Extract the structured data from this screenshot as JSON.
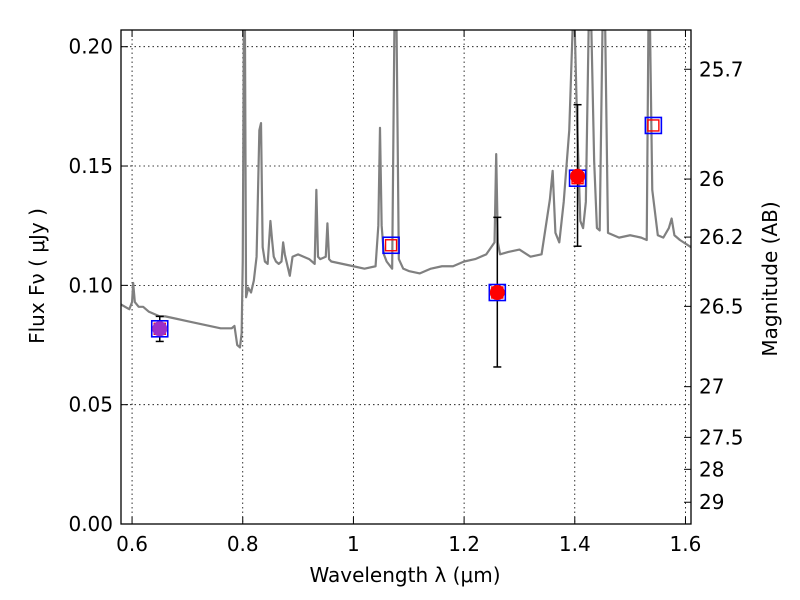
{
  "chart_data": {
    "type": "line",
    "xlabel": "Wavelength  λ (μm)",
    "ylabel": "Flux  Fν  ( μJy )",
    "y2label": "Magnitude (AB)",
    "xlim": [
      0.58,
      1.61
    ],
    "ylim": [
      0.0,
      0.207
    ],
    "grid": true,
    "x_ticks": [
      {
        "value": 0.6,
        "label": "0.6"
      },
      {
        "value": 0.8,
        "label": "0.8"
      },
      {
        "value": 1.0,
        "label": "1"
      },
      {
        "value": 1.2,
        "label": "1.2"
      },
      {
        "value": 1.4,
        "label": "1.4"
      },
      {
        "value": 1.6,
        "label": "1.6"
      }
    ],
    "y_ticks": [
      {
        "value": 0.0,
        "label": "0.00"
      },
      {
        "value": 0.05,
        "label": "0.05"
      },
      {
        "value": 0.1,
        "label": "0.10"
      },
      {
        "value": 0.15,
        "label": "0.15"
      },
      {
        "value": 0.2,
        "label": "0.20"
      }
    ],
    "y2_ticks": [
      {
        "value": 25.7,
        "label": "25.7"
      },
      {
        "value": 26.0,
        "label": "26"
      },
      {
        "value": 26.2,
        "label": "26.2"
      },
      {
        "value": 26.5,
        "label": "26.5"
      },
      {
        "value": 27.0,
        "label": "27"
      },
      {
        "value": 27.5,
        "label": "27.5"
      },
      {
        "value": 28.0,
        "label": "28"
      },
      {
        "value": 29.0,
        "label": "29"
      }
    ],
    "series": [
      {
        "type": "line",
        "color": "#808080",
        "x": [
          0.58,
          0.595,
          0.6,
          0.602,
          0.605,
          0.612,
          0.62,
          0.63,
          0.65,
          0.66,
          0.68,
          0.7,
          0.72,
          0.74,
          0.76,
          0.78,
          0.785,
          0.79,
          0.795,
          0.798,
          0.8,
          0.802,
          0.804,
          0.806,
          0.81,
          0.815,
          0.82,
          0.825,
          0.83,
          0.833,
          0.836,
          0.84,
          0.845,
          0.85,
          0.853,
          0.856,
          0.86,
          0.865,
          0.87,
          0.873,
          0.876,
          0.88,
          0.885,
          0.89,
          0.9,
          0.91,
          0.92,
          0.93,
          0.933,
          0.936,
          0.94,
          0.95,
          0.953,
          0.956,
          0.96,
          0.98,
          1.0,
          1.02,
          1.04,
          1.045,
          1.048,
          1.051,
          1.055,
          1.06,
          1.07,
          1.074,
          1.076,
          1.078,
          1.082,
          1.09,
          1.1,
          1.12,
          1.14,
          1.16,
          1.18,
          1.2,
          1.22,
          1.24,
          1.255,
          1.258,
          1.261,
          1.265,
          1.28,
          1.3,
          1.32,
          1.34,
          1.355,
          1.36,
          1.365,
          1.372,
          1.38,
          1.39,
          1.396,
          1.4,
          1.404,
          1.41,
          1.415,
          1.42,
          1.425,
          1.43,
          1.435,
          1.44,
          1.445,
          1.45,
          1.455,
          1.46,
          1.47,
          1.48,
          1.5,
          1.52,
          1.53,
          1.533,
          1.536,
          1.54,
          1.55,
          1.56,
          1.57,
          1.575,
          1.58,
          1.59,
          1.61
        ],
        "y": [
          0.092,
          0.09,
          0.093,
          0.101,
          0.093,
          0.091,
          0.091,
          0.089,
          0.087,
          0.087,
          0.086,
          0.085,
          0.084,
          0.083,
          0.082,
          0.082,
          0.083,
          0.075,
          0.074,
          0.08,
          0.11,
          0.207,
          0.207,
          0.095,
          0.099,
          0.097,
          0.102,
          0.112,
          0.165,
          0.168,
          0.116,
          0.11,
          0.109,
          0.127,
          0.119,
          0.112,
          0.11,
          0.109,
          0.11,
          0.118,
          0.113,
          0.109,
          0.104,
          0.112,
          0.113,
          0.112,
          0.111,
          0.109,
          0.14,
          0.112,
          0.111,
          0.112,
          0.126,
          0.111,
          0.11,
          0.109,
          0.108,
          0.107,
          0.108,
          0.125,
          0.166,
          0.125,
          0.113,
          0.11,
          0.107,
          0.207,
          0.207,
          0.207,
          0.111,
          0.107,
          0.106,
          0.105,
          0.107,
          0.108,
          0.108,
          0.11,
          0.111,
          0.113,
          0.118,
          0.155,
          0.118,
          0.113,
          0.114,
          0.115,
          0.112,
          0.113,
          0.136,
          0.148,
          0.122,
          0.118,
          0.135,
          0.165,
          0.207,
          0.207,
          0.17,
          0.127,
          0.124,
          0.135,
          0.207,
          0.207,
          0.152,
          0.124,
          0.123,
          0.207,
          0.207,
          0.122,
          0.121,
          0.12,
          0.121,
          0.12,
          0.119,
          0.207,
          0.207,
          0.14,
          0.121,
          0.12,
          0.124,
          0.128,
          0.121,
          0.119,
          0.116
        ]
      },
      {
        "name": "",
        "type": "scatter",
        "marker": "circle",
        "color": "#ff0000",
        "x": [
          0.65,
          1.26,
          1.405
        ],
        "y": [
          0.0818,
          0.097,
          0.1457
        ],
        "yerr_low": [
          0.0765,
          0.0658,
          0.1164
        ],
        "yerr_high": [
          0.087,
          0.1285,
          0.1757
        ],
        "point_colors": [
          "#9b30c8",
          "#ff0000",
          "#ff0000"
        ]
      },
      {
        "name": "",
        "type": "scatter",
        "marker": "square",
        "x": [
          0.65,
          1.068,
          1.26,
          1.405,
          1.542
        ],
        "y": [
          0.0818,
          0.1168,
          0.097,
          0.1449,
          0.167
        ]
      }
    ]
  }
}
